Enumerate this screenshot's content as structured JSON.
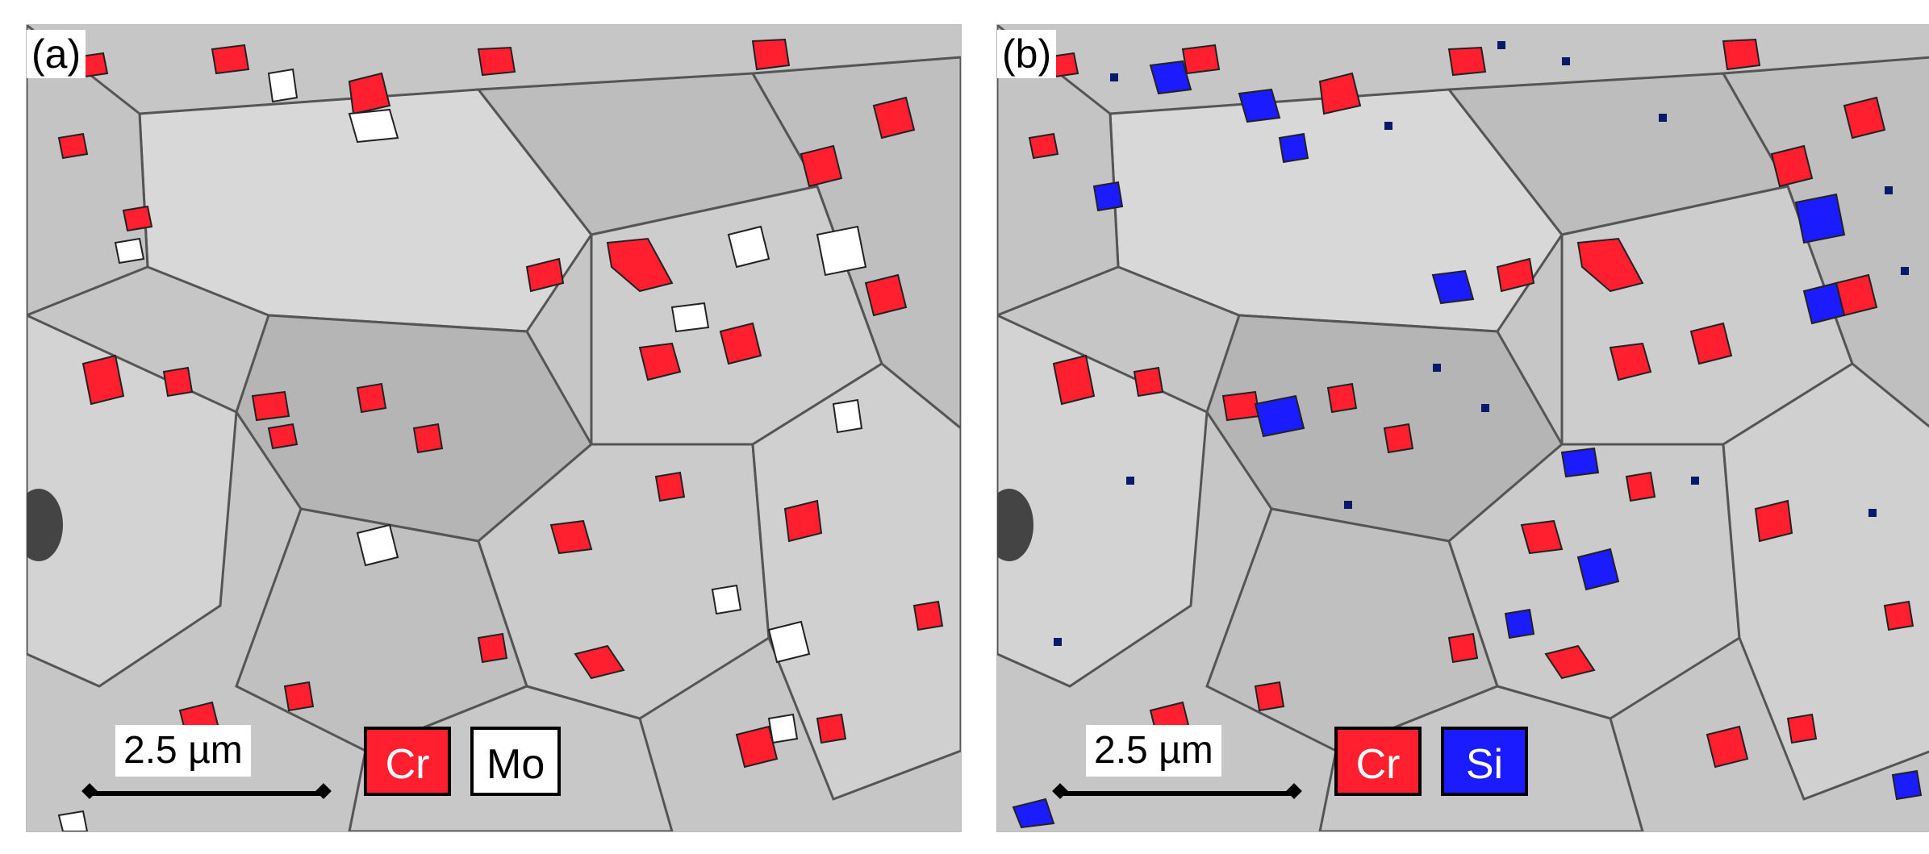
{
  "panels": [
    {
      "label": "(a)",
      "scale": "2.5 µm",
      "legend": [
        {
          "text": "Cr",
          "color": "#ff1f2e"
        },
        {
          "text": "Mo",
          "color": "#ffffff"
        }
      ]
    },
    {
      "label": "(b)",
      "scale": "2.5 µm",
      "legend": [
        {
          "text": "Cr",
          "color": "#ff1f2e"
        },
        {
          "text": "Si",
          "color": "#1b1bff"
        }
      ]
    }
  ]
}
